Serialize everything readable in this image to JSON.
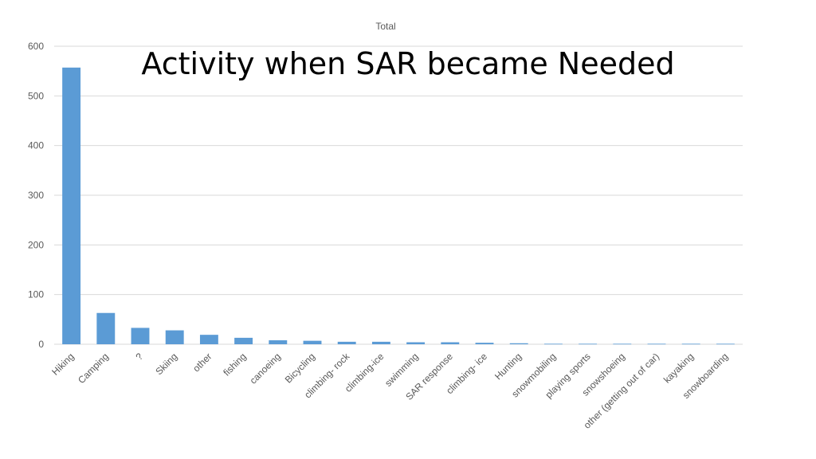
{
  "slide": {
    "title": "Activity when SAR became Needed"
  },
  "chart_data": {
    "type": "bar",
    "title": "Total",
    "xlabel": "",
    "ylabel": "",
    "ylim": [
      0,
      600
    ],
    "yticks": [
      0,
      100,
      200,
      300,
      400,
      500,
      600
    ],
    "grid": true,
    "legend": "none",
    "bar_color": "#5B9BD5",
    "grid_color": "#D9D9D9",
    "categories": [
      "Hiking",
      "Camping",
      "?",
      "Skiing",
      "other",
      "fishing",
      "canoeing",
      "Bicycling",
      "climbing- rock",
      "climbing-ice",
      "swimming",
      "SAR response",
      "climbing- ice",
      "Hunting",
      "snowmobiling",
      "playing sports",
      "snowshoeing",
      "other (getting out of car)",
      "kayaking",
      "snowboarding"
    ],
    "values": [
      557,
      63,
      33,
      28,
      19,
      13,
      8,
      7,
      5,
      5,
      4,
      4,
      3,
      2,
      1,
      1,
      1,
      1,
      1,
      1
    ]
  }
}
